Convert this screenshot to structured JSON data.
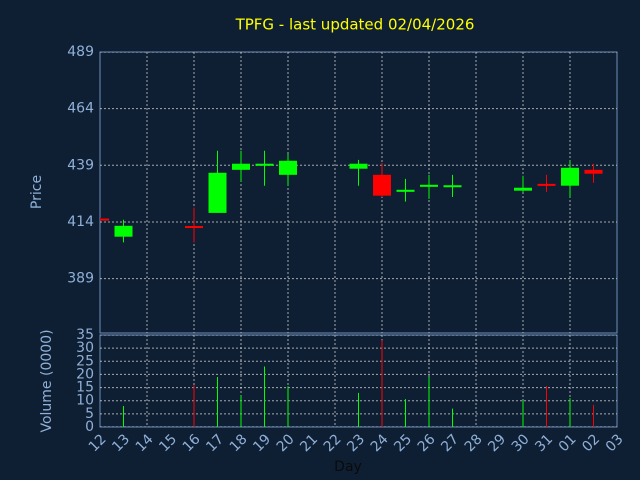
{
  "chart_data": {
    "type": "candlestick",
    "title": "TPFG - last updated 02/04/2026",
    "xlabel": "Day",
    "ylabel": "Price",
    "volume_label": "Volume (0000)",
    "categories": [
      "12",
      "13",
      "14",
      "15",
      "16",
      "17",
      "18",
      "19",
      "20",
      "21",
      "22",
      "23",
      "24",
      "25",
      "26",
      "27",
      "28",
      "29",
      "30",
      "31",
      "01",
      "02",
      "03"
    ],
    "open": [
      415.5,
      407.5,
      null,
      null,
      412.2,
      418.0,
      437.0,
      438.8,
      434.8,
      null,
      null,
      437.5,
      434.8,
      427.3,
      429.5,
      429.6,
      null,
      null,
      427.8,
      430.8,
      430.0,
      437.0,
      null
    ],
    "high": [
      415.8,
      415.0,
      null,
      null,
      420.3,
      445.4,
      445.4,
      445.4,
      444.0,
      null,
      null,
      441.4,
      440.0,
      433.0,
      434.8,
      434.8,
      null,
      null,
      434.4,
      434.8,
      441.0,
      439.7,
      null
    ],
    "low": [
      415.0,
      405.0,
      null,
      null,
      405.0,
      418.0,
      431.7,
      430.0,
      430.0,
      null,
      null,
      430.0,
      425.0,
      423.0,
      424.2,
      425.0,
      null,
      null,
      427.3,
      427.3,
      424.7,
      431.3,
      null
    ],
    "close": [
      415.1,
      412.3,
      null,
      null,
      411.8,
      435.7,
      439.7,
      439.7,
      441.0,
      null,
      null,
      439.7,
      425.6,
      428.2,
      430.4,
      430.2,
      null,
      null,
      429.1,
      430.0,
      437.9,
      435.3,
      null
    ],
    "volume": [
      null,
      8,
      null,
      null,
      16,
      19,
      12,
      23,
      15.5,
      null,
      null,
      13,
      33,
      10.6,
      19,
      7,
      null,
      null,
      10,
      15.6,
      11,
      8.4,
      null
    ],
    "up_color": "#00ff00",
    "down_color": "#ff0000",
    "ylim": [
      365,
      489
    ],
    "yticks": [
      389,
      414,
      439,
      464,
      489
    ],
    "volume_ylim": [
      0,
      35
    ],
    "volume_yticks": [
      0,
      5,
      10,
      15,
      20,
      25,
      30,
      35
    ],
    "grid": true
  }
}
